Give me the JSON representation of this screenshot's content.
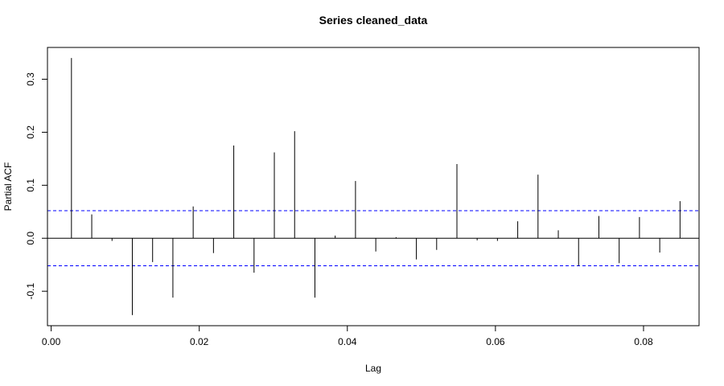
{
  "chart_data": {
    "type": "bar",
    "title": "Series  cleaned_data",
    "xlabel": "Lag",
    "ylabel": "Partial ACF",
    "xlim": [
      -0.0005,
      0.0875
    ],
    "ylim": [
      -0.165,
      0.36
    ],
    "xticks": [
      0.0,
      0.02,
      0.04,
      0.06,
      0.08
    ],
    "xtick_labels": [
      "0.00",
      "0.02",
      "0.04",
      "0.06",
      "0.08"
    ],
    "yticks": [
      -0.1,
      0.0,
      0.1,
      0.2,
      0.3
    ],
    "ytick_labels": [
      "-0.1",
      "0.0",
      "0.1",
      "0.2",
      "0.3"
    ],
    "confidence_bound": 0.052,
    "confidence_color": "#0000ff",
    "grid": false,
    "x": [
      0.00274,
      0.00548,
      0.00822,
      0.01096,
      0.0137,
      0.01644,
      0.01918,
      0.02192,
      0.02466,
      0.0274,
      0.03014,
      0.03288,
      0.03562,
      0.03836,
      0.0411,
      0.04384,
      0.04658,
      0.04932,
      0.05206,
      0.0548,
      0.05753,
      0.06027,
      0.06301,
      0.06575,
      0.06849,
      0.07123,
      0.07397,
      0.07671,
      0.07945,
      0.08219,
      0.08493
    ],
    "values": [
      0.34,
      0.045,
      -0.005,
      -0.145,
      -0.045,
      -0.112,
      0.06,
      -0.028,
      0.175,
      -0.065,
      0.162,
      0.202,
      -0.112,
      0.005,
      0.108,
      -0.025,
      0.002,
      -0.04,
      -0.022,
      0.14,
      -0.004,
      -0.005,
      0.032,
      0.12,
      0.015,
      -0.052,
      0.042,
      -0.047,
      0.04,
      -0.027,
      0.07
    ]
  }
}
